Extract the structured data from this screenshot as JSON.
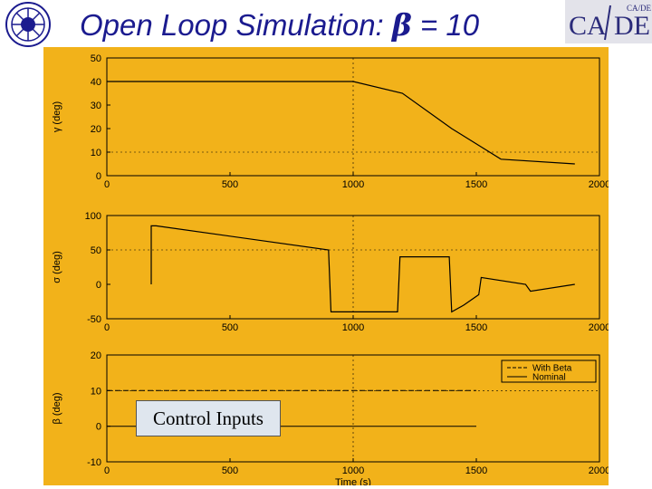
{
  "title": {
    "text": "Open Loop Simulation: ",
    "symbol": "β",
    "suffix": " = 10"
  },
  "logos": {
    "left": "iit-bombay-logo",
    "right_text": "CA/DE"
  },
  "annotation": "Control Inputs",
  "colors": {
    "figure_bg": "#f2b21a",
    "plot_bg": "#f2b21a",
    "title": "#1b1b8f",
    "line": "#000000"
  },
  "chart_data": [
    {
      "type": "line",
      "ylabel": "γ (deg)",
      "xlabel": "",
      "xlim": [
        0,
        2000
      ],
      "ylim": [
        0,
        50
      ],
      "xticks": [
        0,
        500,
        1000,
        1500,
        2000
      ],
      "yticks": [
        0,
        10,
        20,
        30,
        40,
        50
      ],
      "grid": "dashed",
      "series": [
        {
          "x": [
            0,
            1000,
            1200,
            1400,
            1600,
            1900
          ],
          "y": [
            40,
            40,
            35,
            20,
            7,
            5
          ]
        }
      ]
    },
    {
      "type": "line",
      "ylabel": "σ (deg)",
      "xlabel": "",
      "xlim": [
        0,
        2000
      ],
      "ylim": [
        -50,
        100
      ],
      "xticks": [
        0,
        500,
        1000,
        1500,
        2000
      ],
      "yticks": [
        -50,
        0,
        50,
        100
      ],
      "grid": "dashed",
      "series": [
        {
          "x": [
            180,
            180,
            200,
            900,
            910,
            1180,
            1190,
            1390,
            1400,
            1450,
            1510,
            1520,
            1700,
            1720,
            1900
          ],
          "y": [
            0,
            85,
            85,
            50,
            -40,
            -40,
            40,
            40,
            -40,
            -30,
            -15,
            10,
            0,
            -10,
            0
          ]
        }
      ]
    },
    {
      "type": "line",
      "ylabel": "β (deg)",
      "xlabel": "Time (s)",
      "xlim": [
        0,
        2000
      ],
      "ylim": [
        -10,
        20
      ],
      "xticks": [
        0,
        500,
        1000,
        1500,
        2000
      ],
      "yticks": [
        -10,
        0,
        10,
        20
      ],
      "grid": "dashed",
      "legend": "top-right",
      "series": [
        {
          "name": "With Beta",
          "x": [
            0,
            1500
          ],
          "y": [
            10,
            10
          ]
        },
        {
          "name": "Nominal",
          "x": [
            0,
            1500
          ],
          "y": [
            0,
            0
          ]
        }
      ]
    }
  ]
}
